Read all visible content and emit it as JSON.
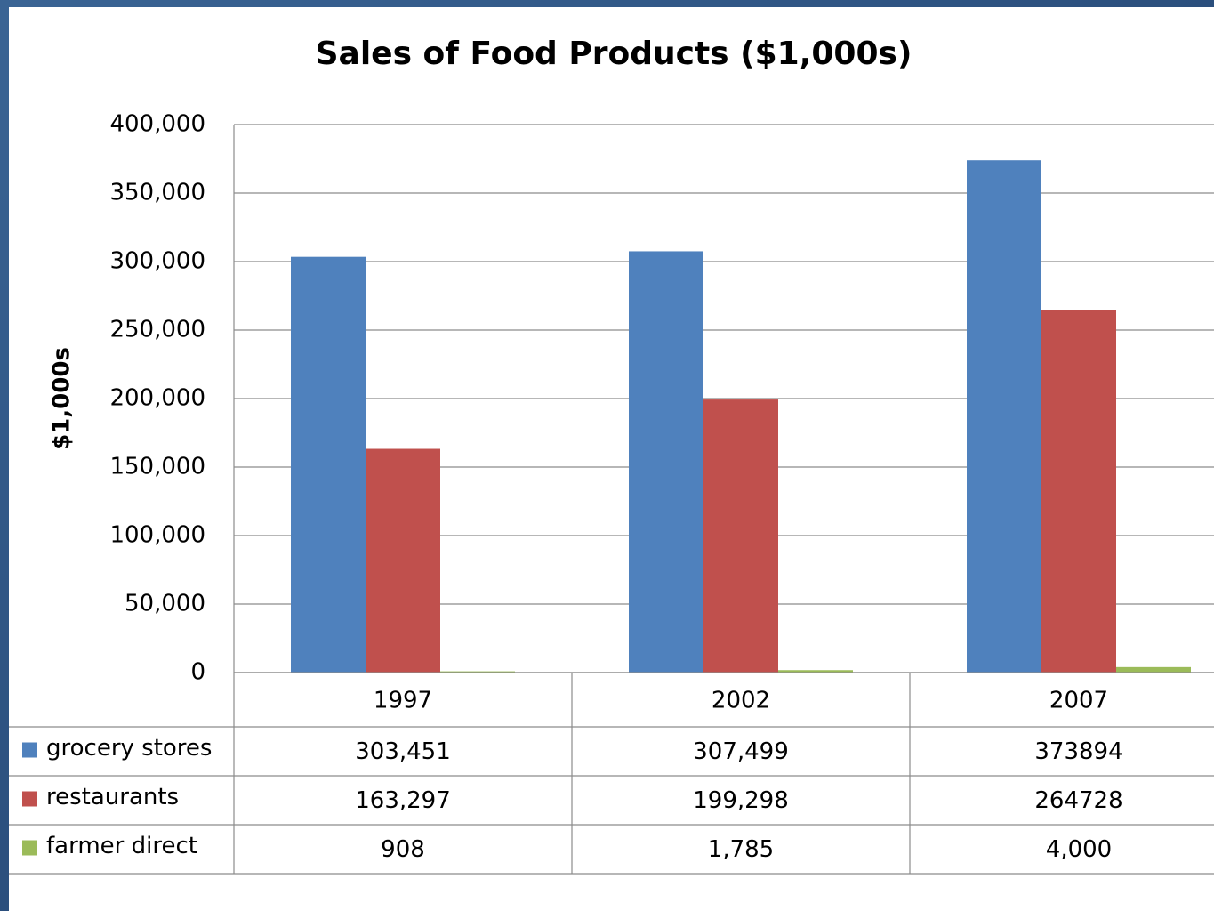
{
  "chart_data": {
    "type": "bar",
    "title": "Sales of Food Products ($1,000s)",
    "y_label": "$1,000s",
    "categories": [
      "1997",
      "2002",
      "2007"
    ],
    "series": [
      {
        "name": "grocery stores",
        "color": "#4f81bd",
        "values": [
          303451,
          307499,
          373894
        ],
        "value_labels": [
          "303,451",
          "307,499",
          "373894"
        ]
      },
      {
        "name": "restaurants",
        "color": "#c0504d",
        "values": [
          163297,
          199298,
          264728
        ],
        "value_labels": [
          "163,297",
          "199,298",
          "264728"
        ]
      },
      {
        "name": "farmer direct",
        "color": "#9bbb59",
        "values": [
          908,
          1785,
          4000
        ],
        "value_labels": [
          "908",
          "1,785",
          "4,000"
        ]
      }
    ],
    "ylim": [
      0,
      400000
    ],
    "yticks": [
      0,
      {
        "value": 50000,
        "label": "50,000"
      },
      {
        "value": 100000,
        "label": "100,000"
      },
      {
        "value": 150000,
        "label": "150,000"
      },
      {
        "value": 200000,
        "label": "200,000"
      },
      {
        "value": 250000,
        "label": "250,000"
      },
      {
        "value": 300000,
        "label": "300,000"
      },
      {
        "value": 350000,
        "label": "350,000"
      },
      {
        "value": 400000,
        "label": "400,000"
      }
    ],
    "grid": true,
    "data_table": true
  }
}
